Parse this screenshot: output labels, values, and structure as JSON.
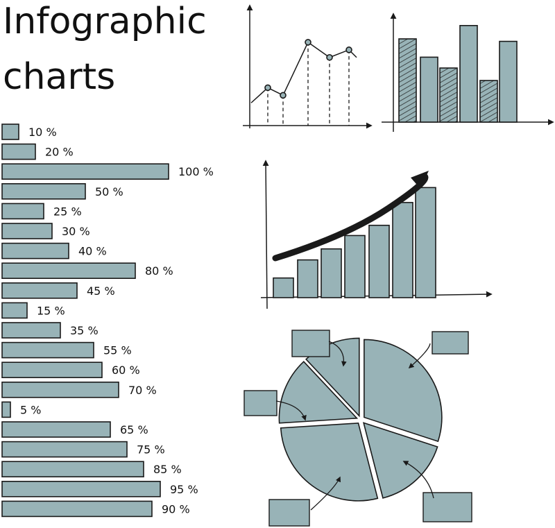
{
  "title": {
    "line1": "Infographic",
    "line2": "charts"
  },
  "colors": {
    "fill": "#98b3b7",
    "stroke": "#1a1a1a"
  },
  "chart_data": [
    {
      "type": "bar",
      "orientation": "horizontal",
      "values": [
        10,
        20,
        100,
        50,
        25,
        30,
        40,
        80,
        45,
        15,
        35,
        55,
        60,
        70,
        5,
        65,
        75,
        85,
        95,
        90
      ],
      "labels": [
        "10 %",
        "20 %",
        "100 %",
        "50 %",
        "25 %",
        "30 %",
        "40 %",
        "80 %",
        "45 %",
        "15 %",
        "35 %",
        "55 %",
        "60 %",
        "70 %",
        "5 %",
        "65 %",
        "75 %",
        "85 %",
        "95 %",
        "90 %"
      ],
      "xlim": [
        0,
        100
      ]
    },
    {
      "type": "line",
      "values": [
        3,
        5,
        4,
        11,
        9,
        10,
        9
      ],
      "markers": [
        false,
        true,
        true,
        true,
        true,
        true,
        false
      ],
      "ylim": [
        0,
        12
      ]
    },
    {
      "type": "bar",
      "values": [
        10,
        7.8,
        6.5,
        11.6,
        5,
        9.7
      ],
      "hatched": [
        true,
        false,
        true,
        false,
        true,
        false
      ],
      "ylim": [
        0,
        13
      ]
    },
    {
      "type": "bar",
      "values": [
        2.5,
        4.8,
        6.2,
        7.9,
        9.2,
        12.1,
        14
      ],
      "trend_arrow": true,
      "ylim": [
        0,
        18
      ]
    },
    {
      "type": "pie",
      "values": [
        30,
        16,
        28,
        14,
        12
      ],
      "exploded": true
    }
  ]
}
